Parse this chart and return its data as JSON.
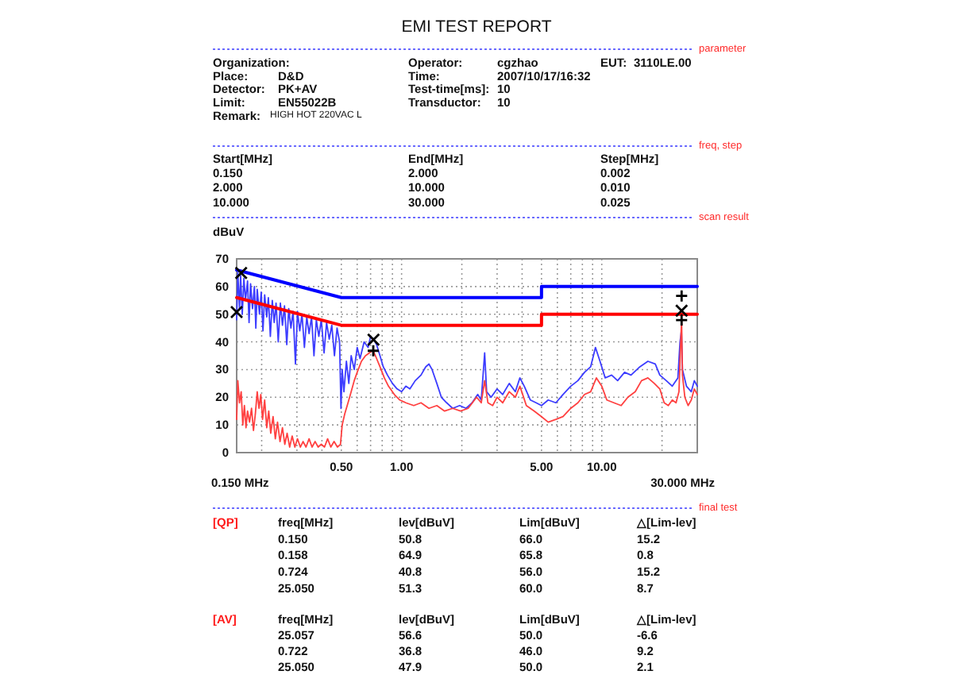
{
  "chart_data": {
    "type": "line",
    "title": "EMI TEST REPORT",
    "ylabel": "dBuV",
    "annotations": [
      "parameter",
      "Organization:",
      "Operator:",
      "cgzhao",
      "EUT:",
      "3110LE.00",
      "Place:",
      "D&D",
      "Time:",
      "2007/10/17/16:32",
      "Detector:",
      "PK+AV",
      "Test-time[ms]:",
      "10",
      "Limit:",
      "EN55022B",
      "Transductor:",
      "10",
      "Remark:",
      "HIGH HOT 220VAC L",
      "freq, step",
      "Start[MHz]",
      "End[MHz]",
      "Step[MHz]",
      "0.150",
      "2.000",
      "0.002",
      "2.000",
      "10.000",
      "0.010",
      "10.000",
      "30.000",
      "0.025",
      "scan result",
      "0.150 MHz",
      "30.000 MHz",
      "final test",
      "[QP]",
      "freq[MHz]",
      "lev[dBuV]",
      "Lim[dBuV]",
      "△[Lim-lev]",
      "0.150",
      "50.8",
      "66.0",
      "15.2",
      "0.158",
      "64.9",
      "65.8",
      "0.8",
      "0.724",
      "40.8",
      "56.0",
      "15.2",
      "25.050",
      "51.3",
      "60.0",
      "8.7",
      "[AV]",
      "freq[MHz]",
      "lev[dBuV]",
      "Lim[dBuV]",
      "△[Lim-lev]",
      "25.057",
      "56.6",
      "50.0",
      "-6.6",
      "0.722",
      "36.8",
      "46.0",
      "9.2",
      "25.050",
      "47.9",
      "50.0",
      "2.1"
    ],
    "xlim": [
      0.15,
      30
    ],
    "ylim": [
      0,
      70
    ],
    "xticks": [
      {
        "value": 0.2,
        "label": null
      },
      {
        "value": 0.3,
        "label": null
      },
      {
        "value": 0.4,
        "label": null
      },
      {
        "value": 0.5,
        "label": "0.50"
      },
      {
        "value": 0.6,
        "label": null
      },
      {
        "value": 0.7,
        "label": null
      },
      {
        "value": 0.8,
        "label": null
      },
      {
        "value": 0.9,
        "label": null
      },
      {
        "value": 1,
        "label": "1.00"
      },
      {
        "value": 2,
        "label": null
      },
      {
        "value": 3,
        "label": null
      },
      {
        "value": 4,
        "label": null
      },
      {
        "value": 5,
        "label": "5.00"
      },
      {
        "value": 6,
        "label": null
      },
      {
        "value": 7,
        "label": null
      },
      {
        "value": 8,
        "label": null
      },
      {
        "value": 9,
        "label": null
      },
      {
        "value": 10,
        "label": "10.00"
      },
      {
        "value": 20,
        "label": null
      }
    ],
    "yticks": [
      0,
      10,
      20,
      30,
      40,
      50,
      60,
      70
    ],
    "log": "x",
    "grid": true,
    "series": [
      {
        "color": "#3c3cff",
        "x": [
          0.15,
          0.152,
          0.155,
          0.157,
          0.16,
          0.163,
          0.166,
          0.17,
          0.173,
          0.176,
          0.18,
          0.184,
          0.187,
          0.19,
          0.195,
          0.199,
          0.203,
          0.207,
          0.212,
          0.216,
          0.221,
          0.226,
          0.231,
          0.236,
          0.242,
          0.248,
          0.254,
          0.26,
          0.267,
          0.273,
          0.28,
          0.287,
          0.295,
          0.302,
          0.31,
          0.318,
          0.327,
          0.336,
          0.345,
          0.355,
          0.365,
          0.375,
          0.386,
          0.397,
          0.41,
          0.422,
          0.435,
          0.448,
          0.462,
          0.476,
          0.49,
          0.498,
          0.505,
          0.515,
          0.53,
          0.545,
          0.56,
          0.58,
          0.6,
          0.62,
          0.65,
          0.68,
          0.7,
          0.724,
          0.75,
          0.78,
          0.81,
          0.85,
          0.9,
          0.95,
          1.0,
          1.05,
          1.1,
          1.17,
          1.25,
          1.32,
          1.37,
          1.42,
          1.5,
          1.58,
          1.68,
          1.8,
          1.95,
          2.1,
          2.25,
          2.4,
          2.5,
          2.6,
          2.66,
          2.8,
          3.0,
          3.2,
          3.45,
          3.7,
          3.9,
          4.1,
          4.4,
          4.7,
          5.0,
          5.4,
          5.9,
          6.4,
          7.0,
          7.6,
          8.2,
          8.8,
          9.3,
          9.8,
          10.4,
          11.2,
          12.0,
          13.0,
          14.0,
          15.5,
          17.0,
          18.5,
          19.5,
          21.0,
          22.5,
          24.0,
          24.6,
          25.0,
          25.3,
          26.5,
          28.0,
          29.0,
          30.0
        ],
        "values": [
          48,
          65,
          52,
          64,
          50,
          63,
          55,
          62,
          47,
          61,
          52,
          60,
          45,
          59,
          50,
          58,
          44,
          57,
          49,
          56,
          42,
          55,
          47,
          54,
          40,
          54,
          46,
          53,
          39,
          52,
          45,
          51,
          32,
          51,
          44,
          50,
          38,
          49,
          43,
          49,
          35,
          48,
          42,
          48,
          36,
          47,
          41,
          46,
          35,
          45,
          40,
          16,
          30,
          22,
          33,
          25,
          35,
          30,
          38,
          34,
          40,
          38,
          42,
          41,
          39,
          35,
          31,
          28,
          25,
          23,
          22,
          24,
          23,
          26,
          28,
          31,
          32,
          30,
          25,
          20,
          18,
          16,
          17,
          16,
          18,
          21,
          19,
          36,
          22,
          20,
          23,
          21,
          25,
          22,
          27,
          24,
          19,
          18,
          17,
          19,
          18,
          21,
          24,
          26,
          29,
          31,
          38,
          33,
          27,
          28,
          26,
          29,
          28,
          31,
          33,
          32,
          28,
          26,
          24,
          27,
          40,
          44,
          30,
          24,
          22,
          26,
          24
        ]
      },
      {
        "color": "#ff4040",
        "x": [
          0.15,
          0.152,
          0.155,
          0.158,
          0.161,
          0.164,
          0.167,
          0.17,
          0.174,
          0.178,
          0.182,
          0.186,
          0.19,
          0.194,
          0.198,
          0.202,
          0.207,
          0.212,
          0.217,
          0.222,
          0.228,
          0.234,
          0.24,
          0.247,
          0.254,
          0.261,
          0.268,
          0.276,
          0.284,
          0.293,
          0.302,
          0.312,
          0.322,
          0.333,
          0.345,
          0.357,
          0.37,
          0.383,
          0.397,
          0.412,
          0.427,
          0.443,
          0.46,
          0.478,
          0.495,
          0.505,
          0.52,
          0.54,
          0.56,
          0.58,
          0.6,
          0.63,
          0.66,
          0.69,
          0.72,
          0.75,
          0.78,
          0.82,
          0.86,
          0.92,
          0.98,
          1.05,
          1.15,
          1.25,
          1.37,
          1.5,
          1.64,
          1.8,
          1.97,
          2.15,
          2.37,
          2.5,
          2.6,
          2.7,
          2.85,
          3.0,
          3.2,
          3.45,
          3.7,
          3.9,
          4.2,
          4.6,
          5.0,
          5.4,
          5.9,
          6.4,
          7.0,
          7.6,
          8.2,
          8.8,
          9.4,
          10.0,
          10.6,
          11.5,
          12.5,
          13.5,
          14.7,
          15.8,
          17.0,
          18.3,
          19.5,
          20.5,
          21.5,
          22.5,
          23.5,
          24.3,
          24.8,
          25.05,
          25.3,
          26.0,
          27.0,
          28.0,
          29.0,
          30.0
        ],
        "values": [
          12,
          26,
          18,
          22,
          10,
          17,
          9,
          15,
          11,
          16,
          8,
          14,
          22,
          16,
          21,
          12,
          19,
          9,
          15,
          7,
          13,
          5,
          11,
          4,
          9,
          3,
          7,
          2,
          6,
          2,
          5,
          2,
          4,
          2,
          5,
          2,
          4,
          2,
          3,
          2,
          5,
          2,
          4,
          2,
          3,
          10,
          14,
          18,
          22,
          26,
          29,
          33,
          35,
          36,
          37,
          34,
          31,
          27,
          24,
          21,
          19,
          18,
          17,
          18,
          16,
          17,
          15,
          16,
          15,
          16,
          20,
          18,
          26,
          18,
          17,
          20,
          18,
          22,
          20,
          24,
          17,
          15,
          13,
          11,
          12,
          13,
          16,
          18,
          21,
          22,
          27,
          24,
          19,
          18,
          17,
          20,
          22,
          26,
          27,
          25,
          23,
          18,
          17,
          19,
          18,
          22,
          40,
          48,
          28,
          20,
          17,
          19,
          23,
          21
        ]
      },
      {
        "color": "#0000ff",
        "x": [
          0.15,
          0.5,
          5,
          5,
          30
        ],
        "values": [
          66,
          56,
          56,
          60,
          60
        ]
      },
      {
        "color": "#ff0000",
        "x": [
          0.15,
          0.5,
          5,
          5,
          30
        ],
        "values": [
          56,
          46,
          46,
          50,
          50
        ]
      },
      {
        "type": "scatter",
        "color": "#000000",
        "marker": "cross",
        "x": [
          0.15,
          0.158,
          0.724,
          25.05
        ],
        "values": [
          50.8,
          64.9,
          40.8,
          51.3
        ]
      },
      {
        "type": "scatter",
        "color": "#000000",
        "marker": "plus",
        "x": [
          25.057,
          0.722,
          25.05
        ],
        "values": [
          56.6,
          36.8,
          47.9
        ]
      }
    ]
  }
}
